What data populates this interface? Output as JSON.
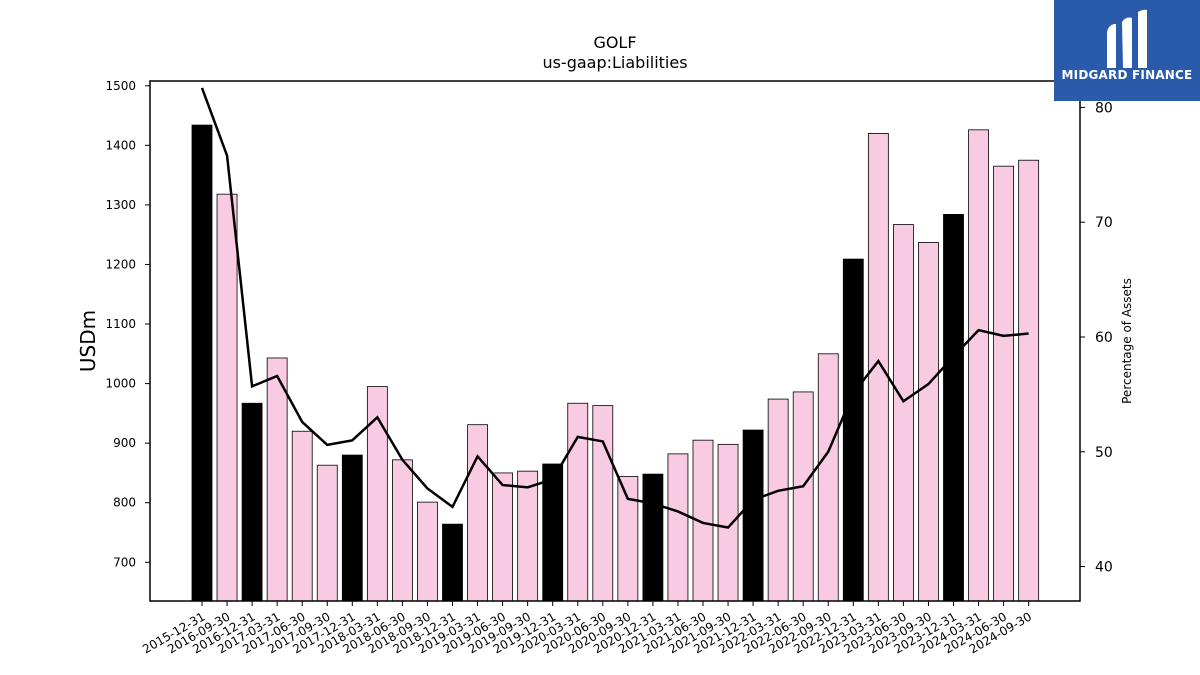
{
  "chart_data": {
    "type": "bar",
    "title": "GOLF",
    "subtitle": "us-gaap:Liabilities",
    "ylabel": "USDm",
    "y2label": "Percentage of Assets",
    "ylim": [
      635,
      1508
    ],
    "y2lim": [
      37,
      82.3
    ],
    "yticks": [
      700,
      800,
      900,
      1000,
      1100,
      1200,
      1300,
      1400,
      1500
    ],
    "y2ticks": [
      40,
      50,
      60,
      70,
      80
    ],
    "categories": [
      "2015-12-31",
      "2016-09-30",
      "2016-12-31",
      "2017-03-31",
      "2017-06-30",
      "2017-09-30",
      "2017-12-31",
      "2018-03-31",
      "2018-06-30",
      "2018-09-30",
      "2018-12-31",
      "2019-03-31",
      "2019-06-30",
      "2019-09-30",
      "2019-12-31",
      "2020-03-31",
      "2020-06-30",
      "2020-09-30",
      "2020-12-31",
      "2021-03-31",
      "2021-06-30",
      "2021-09-30",
      "2021-12-31",
      "2022-03-31",
      "2022-06-30",
      "2022-09-30",
      "2022-12-31",
      "2023-03-31",
      "2023-06-30",
      "2023-09-30",
      "2023-12-31",
      "2024-03-31",
      "2024-06-30",
      "2024-09-30"
    ],
    "values": [
      1434,
      1318,
      967,
      1043,
      920,
      863,
      880,
      995,
      872,
      801,
      764,
      931,
      850,
      853,
      865,
      967,
      963,
      844,
      848,
      882,
      905,
      898,
      922,
      974,
      986,
      1050,
      1209,
      1420,
      1267,
      1237,
      1284,
      1426,
      1365,
      1375
    ],
    "annual": [
      true,
      false,
      true,
      false,
      false,
      false,
      true,
      false,
      false,
      false,
      true,
      false,
      false,
      false,
      true,
      false,
      false,
      false,
      true,
      false,
      false,
      false,
      true,
      false,
      false,
      false,
      true,
      false,
      false,
      false,
      true,
      false,
      false,
      false
    ],
    "series": [
      {
        "name": "",
        "axis": "right",
        "type": "line",
        "values": [
          81.7,
          75.8,
          55.7,
          56.6,
          52.6,
          50.6,
          51.0,
          53.0,
          49.3,
          46.8,
          45.2,
          49.6,
          47.1,
          46.9,
          47.6,
          51.3,
          50.9,
          45.9,
          45.5,
          44.8,
          43.8,
          43.4,
          45.8,
          46.6,
          47.0,
          50.0,
          55.1,
          57.9,
          54.4,
          55.9,
          58.3,
          60.6,
          60.1,
          60.3
        ]
      }
    ],
    "colors": {
      "annual_bar": "#000000",
      "quarter_bar": "#f9cbe3",
      "line": "#000000"
    },
    "grid": false
  },
  "logo": {
    "text": "MIDGARD FINANCE",
    "bg": "#2a5bab"
  }
}
